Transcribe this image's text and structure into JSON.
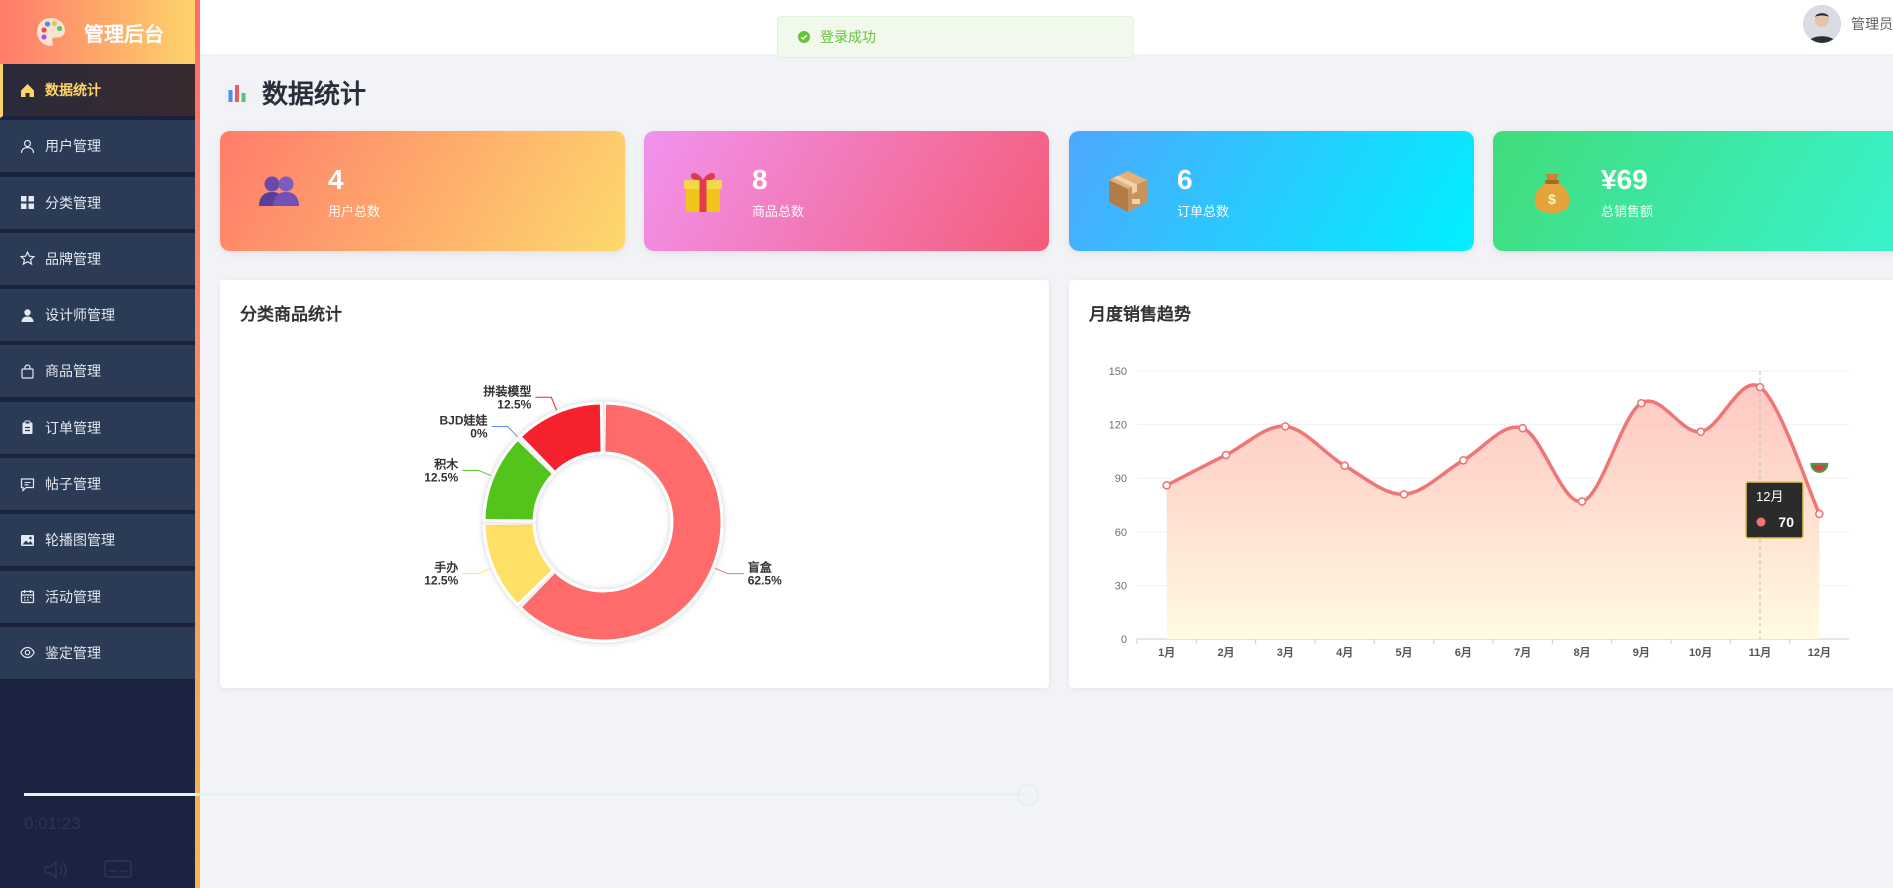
{
  "app": {
    "title": "管理后台",
    "logo_icon": "palette-icon"
  },
  "sidebar": {
    "items": [
      {
        "label": "数据统计",
        "icon": "home-icon",
        "active": true
      },
      {
        "label": "用户管理",
        "icon": "user-outline-icon"
      },
      {
        "label": "分类管理",
        "icon": "grid-icon"
      },
      {
        "label": "品牌管理",
        "icon": "star-icon"
      },
      {
        "label": "设计师管理",
        "icon": "user-solid-icon"
      },
      {
        "label": "商品管理",
        "icon": "bag-icon"
      },
      {
        "label": "订单管理",
        "icon": "clipboard-icon"
      },
      {
        "label": "帖子管理",
        "icon": "comment-icon"
      },
      {
        "label": "轮播图管理",
        "icon": "picture-icon"
      },
      {
        "label": "活动管理",
        "icon": "calendar-icon"
      },
      {
        "label": "鉴定管理",
        "icon": "eye-icon"
      }
    ]
  },
  "header": {
    "toast": "登录成功",
    "user_name": "管理员"
  },
  "page": {
    "title": "数据统计"
  },
  "stats": [
    {
      "value": "4",
      "label": "用户总数",
      "icon": "users-icon"
    },
    {
      "value": "8",
      "label": "商品总数",
      "icon": "gift-icon"
    },
    {
      "value": "6",
      "label": "订单总数",
      "icon": "package-icon"
    },
    {
      "value": "¥69",
      "label": "总销售额",
      "icon": "money-bag-icon"
    }
  ],
  "cards": {
    "pie_title": "分类商品统计",
    "line_title": "月度销售趋势"
  },
  "chart_data": [
    {
      "type": "pie",
      "title": "分类商品统计",
      "slices": [
        {
          "label": "盲盒",
          "value": 62.5,
          "pct_label": "62.5%",
          "color": "#ff6b6b"
        },
        {
          "label": "手办",
          "value": 12.5,
          "pct_label": "12.5%",
          "color": "#ffe066"
        },
        {
          "label": "积木",
          "value": 12.5,
          "pct_label": "12.5%",
          "color": "#52c41a"
        },
        {
          "label": "BJD娃娃",
          "value": 0,
          "pct_label": "0%",
          "color": "#5b8ff9"
        },
        {
          "label": "拼装模型",
          "value": 12.5,
          "pct_label": "12.5%",
          "color": "#f5222d"
        }
      ]
    },
    {
      "type": "line",
      "title": "月度销售趋势",
      "categories": [
        "1月",
        "2月",
        "3月",
        "4月",
        "5月",
        "6月",
        "7月",
        "8月",
        "9月",
        "10月",
        "11月",
        "12月"
      ],
      "values": [
        86,
        103,
        119,
        97,
        81,
        100,
        118,
        77,
        132,
        116,
        141,
        70
      ],
      "ylim": [
        0,
        150
      ],
      "yticks": [
        0,
        30,
        60,
        90,
        120,
        150
      ],
      "color": "#f07575",
      "tooltip": {
        "category": "12月",
        "value": "70"
      }
    }
  ],
  "player": {
    "time": "0:01:23",
    "volume_icon": "volume-icon",
    "subtitle_icon": "subtitles-icon"
  }
}
